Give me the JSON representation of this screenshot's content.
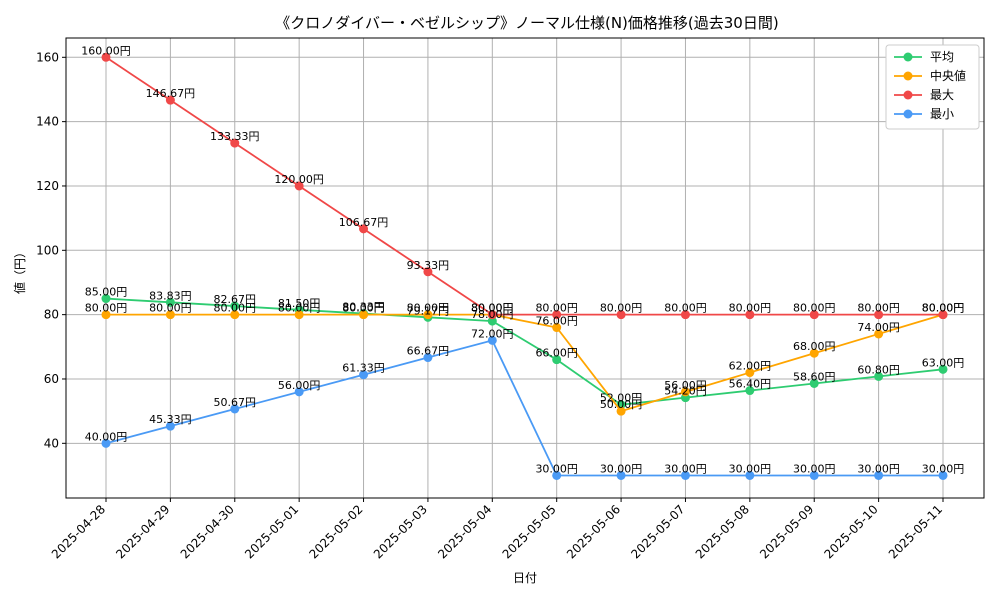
{
  "chart_data": {
    "type": "line",
    "title": "《クロノダイバー・ベゼルシップ》ノーマル仕様(N)価格推移(過去30日間)",
    "xlabel": "日付",
    "ylabel": "値（円）",
    "x": [
      "2025-04-28",
      "2025-04-29",
      "2025-04-30",
      "2025-05-01",
      "2025-05-02",
      "2025-05-03",
      "2025-05-04",
      "2025-05-05",
      "2025-05-06",
      "2025-05-07",
      "2025-05-08",
      "2025-05-09",
      "2025-05-10",
      "2025-05-11"
    ],
    "ylim": [
      23,
      166
    ],
    "yticks": [
      40,
      60,
      80,
      100,
      120,
      140,
      160
    ],
    "grid": true,
    "legend": "top-right",
    "series": [
      {
        "name": "平均",
        "color": "#2ecc71",
        "values": [
          85.0,
          83.83,
          82.67,
          81.5,
          80.33,
          79.17,
          78.0,
          66.0,
          52.0,
          54.2,
          56.4,
          58.6,
          60.8,
          63.0
        ],
        "labels": [
          "85.00円",
          "83.83円",
          "82.67円",
          "81.50円",
          "80.33円",
          "79.17円",
          "78.00円",
          "66.00円",
          "52.00円",
          "54.20円",
          "56.40円",
          "58.60円",
          "60.80円",
          "63.00円"
        ]
      },
      {
        "name": "中央値",
        "color": "#ffa500",
        "values": [
          80.0,
          80.0,
          80.0,
          80.0,
          80.0,
          80.0,
          80.0,
          76.0,
          50.0,
          56.0,
          62.0,
          68.0,
          74.0,
          80.0
        ],
        "labels": [
          "80.00円",
          "80.00円",
          "80.00円",
          "80.00円",
          "80.00円",
          "80.00円",
          "80.00円",
          "76.00円",
          "50.00円",
          "56.00円",
          "62.00円",
          "68.00円",
          "74.00円",
          "80.00円"
        ]
      },
      {
        "name": "最大",
        "color": "#f04848",
        "values": [
          160.0,
          146.67,
          133.33,
          120.0,
          106.67,
          93.33,
          80.0,
          80.0,
          80.0,
          80.0,
          80.0,
          80.0,
          80.0,
          80.0
        ],
        "labels": [
          "160.00円",
          "146.67円",
          "133.33円",
          "120.00円",
          "106.67円",
          "93.33円",
          "80.00円",
          "80.00円",
          "80.00円",
          "80.00円",
          "80.00円",
          "80.00円",
          "80.00円",
          "80.00円"
        ]
      },
      {
        "name": "最小",
        "color": "#4a9af5",
        "values": [
          40.0,
          45.33,
          50.67,
          56.0,
          61.33,
          66.67,
          72.0,
          30.0,
          30.0,
          30.0,
          30.0,
          30.0,
          30.0,
          30.0
        ],
        "labels": [
          "40.00円",
          "45.33円",
          "50.67円",
          "56.00円",
          "61.33円",
          "66.67円",
          "72.00円",
          "30.00円",
          "30.00円",
          "30.00円",
          "30.00円",
          "30.00円",
          "30.00円",
          "30.00円"
        ]
      }
    ]
  }
}
